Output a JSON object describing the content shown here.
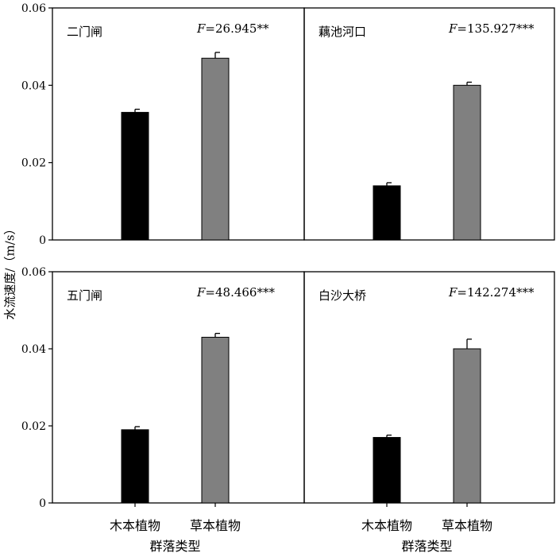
{
  "chart_data": {
    "type": "bar",
    "ylabel": "水流速度/（m/s）",
    "xlabel": "群落类型",
    "categories": [
      "木本植物",
      "草本植物"
    ],
    "ylim": [
      0,
      0.06
    ],
    "yticks": [
      "0",
      "0.02",
      "0.04",
      "0.06"
    ],
    "bar_colors": [
      "#000000",
      "#808080"
    ],
    "panels": [
      {
        "title": "二门闸",
        "stat": "F=26.945**",
        "values": [
          0.033,
          0.047
        ],
        "errors": [
          0.0008,
          0.0015
        ]
      },
      {
        "title": "藕池河口",
        "stat": "F=135.927***",
        "values": [
          0.014,
          0.04
        ],
        "errors": [
          0.0008,
          0.0008
        ]
      },
      {
        "title": "五门闸",
        "stat": "F=48.466***",
        "values": [
          0.019,
          0.043
        ],
        "errors": [
          0.0008,
          0.001
        ]
      },
      {
        "title": "白沙大桥",
        "stat": "F=142.274***",
        "values": [
          0.017,
          0.04
        ],
        "errors": [
          0.0006,
          0.0025
        ]
      }
    ]
  }
}
